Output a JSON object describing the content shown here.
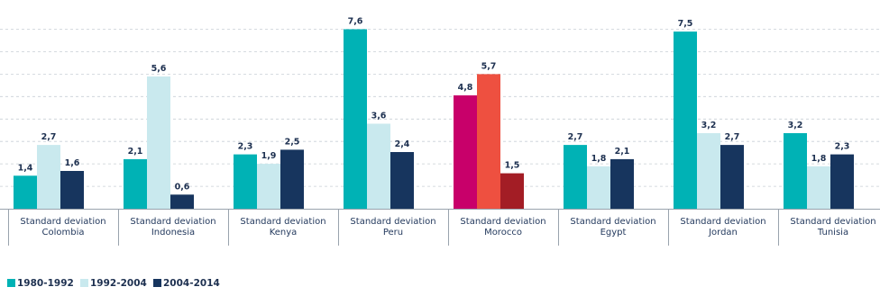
{
  "chart_data": {
    "type": "bar",
    "categories": [
      [
        "Standard deviation",
        "Colombia"
      ],
      [
        "Standard deviation",
        "Indonesia"
      ],
      [
        "Standard deviation",
        "Kenya"
      ],
      [
        "Standard deviation",
        "Peru"
      ],
      [
        "Standard deviation",
        "Morocco"
      ],
      [
        "Standard deviation",
        "Egypt"
      ],
      [
        "Standard deviation",
        "Jordan"
      ],
      [
        "Standard deviation",
        "Tunisia"
      ]
    ],
    "series": [
      {
        "name": "1980-1992",
        "color": "#00b2b5",
        "values": [
          1.4,
          2.1,
          2.3,
          7.6,
          4.8,
          2.7,
          7.5,
          3.2
        ]
      },
      {
        "name": "1992-2004",
        "color": "#c9e9ee",
        "values": [
          2.7,
          5.6,
          1.9,
          3.6,
          5.7,
          1.8,
          3.2,
          1.8
        ]
      },
      {
        "name": "2004-2014",
        "color": "#17355e",
        "values": [
          1.6,
          0.6,
          2.5,
          2.4,
          1.5,
          2.1,
          2.7,
          2.3
        ]
      }
    ],
    "value_labels": [
      [
        "1,4",
        "2,7",
        "1,6"
      ],
      [
        "2,1",
        "5,6",
        "0,6"
      ],
      [
        "2,3",
        "1,9",
        "2,5"
      ],
      [
        "7,6",
        "3,6",
        "2,4"
      ],
      [
        "4,8",
        "5,7",
        "1,5"
      ],
      [
        "2,7",
        "1,8",
        "2,1"
      ],
      [
        "7,5",
        "3,2",
        "2,7"
      ],
      [
        "3,2",
        "1,8",
        "2,3"
      ]
    ],
    "highlight": {
      "category_index": 4,
      "colors": [
        "#c8006a",
        "#ee5040",
        "#a31d25"
      ]
    },
    "ylim": [
      0,
      8
    ],
    "grid": true,
    "legend_position": "bottom-left",
    "colors": {
      "grid": "#c8cfd6",
      "axis": "#9aa3ad",
      "text": "#1d3050"
    }
  }
}
